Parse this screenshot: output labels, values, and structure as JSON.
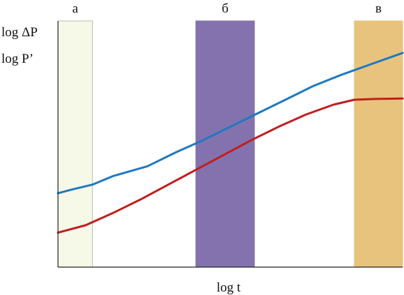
{
  "chart_data": {
    "type": "line",
    "title": "",
    "xlabel": "log t",
    "ylabel_lines": [
      "log ΔP",
      "log P’"
    ],
    "xlim": [
      0,
      100
    ],
    "ylim": [
      0,
      100
    ],
    "grid": false,
    "legend": "none",
    "regions": [
      {
        "label": "а",
        "x0": 0,
        "x1": 10,
        "color": "#f6f8e8",
        "border": "#b9bfa6"
      },
      {
        "label": "б",
        "x0": 40,
        "x1": 57,
        "color": "#8472ae",
        "border": "#8472ae"
      },
      {
        "label": "в",
        "x0": 86,
        "x1": 100,
        "color": "#e8c37d",
        "border": "#e8c37d"
      }
    ],
    "series": [
      {
        "color": "#1f78c1",
        "x": [
          0,
          4,
          10,
          16,
          26,
          34,
          42,
          50,
          58,
          66,
          74,
          82,
          90,
          100
        ],
        "y": [
          30,
          31.5,
          33.5,
          37,
          41,
          46.5,
          51.5,
          57,
          62.5,
          68,
          73.5,
          78,
          82,
          87
        ]
      },
      {
        "color": "#c01e1e",
        "x": [
          0,
          8,
          16,
          24,
          32,
          40,
          48,
          56,
          64,
          72,
          80,
          86,
          92,
          100
        ],
        "y": [
          14,
          17,
          22,
          27.5,
          33.5,
          39.5,
          45.5,
          51.5,
          57,
          62,
          66,
          68,
          68.3,
          68.5
        ]
      }
    ]
  }
}
